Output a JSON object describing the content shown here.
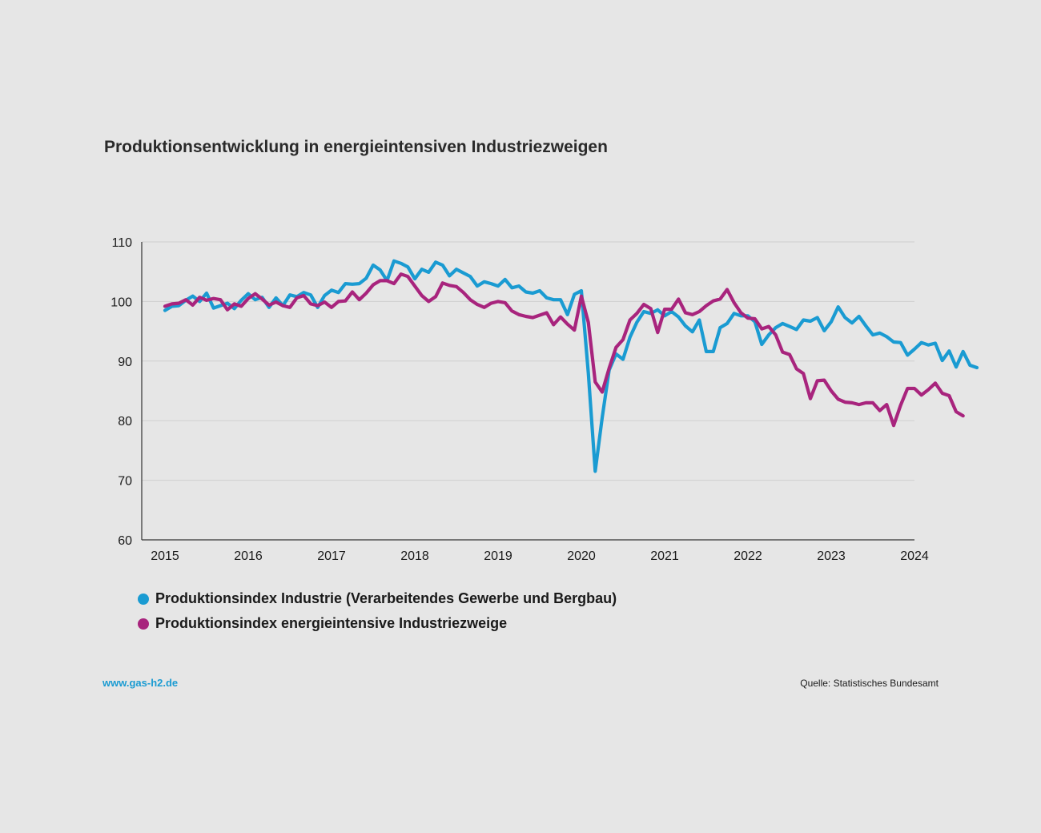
{
  "chart_data": {
    "type": "line",
    "title": "Produktionsentwicklung in energieintensiven Industriezweigen",
    "xlabel": "",
    "ylabel": "",
    "xlim": [
      2015,
      2024
    ],
    "ylim": [
      60,
      110
    ],
    "yticks": [
      60,
      70,
      80,
      90,
      100,
      110
    ],
    "xticks": [
      "2015",
      "2016",
      "2017",
      "2018",
      "2019",
      "2020",
      "2021",
      "2022",
      "2023",
      "2024"
    ],
    "grid": true,
    "legend_position": "bottom-left",
    "x_start": 2015.0,
    "x_step_months": 1,
    "series": [
      {
        "name": "Produktionsindex Industrie (Verarbeitendes Gewerbe und Bergbau)",
        "color": "#1a9bd2",
        "values": [
          98.5,
          99.2,
          99.3,
          100.2,
          100.9,
          100.0,
          101.4,
          98.9,
          99.3,
          99.7,
          98.8,
          100.2,
          101.3,
          100.3,
          100.7,
          99.0,
          100.6,
          99.3,
          101.1,
          100.8,
          101.5,
          101.1,
          99.0,
          101.0,
          101.9,
          101.5,
          103.0,
          102.9,
          103.0,
          103.9,
          106.1,
          105.3,
          103.5,
          106.8,
          106.4,
          105.8,
          103.8,
          105.4,
          104.9,
          106.6,
          106.1,
          104.3,
          105.4,
          104.8,
          104.2,
          102.6,
          103.3,
          103.0,
          102.6,
          103.7,
          102.3,
          102.6,
          101.6,
          101.4,
          101.8,
          100.6,
          100.3,
          100.3,
          97.8,
          101.2,
          101.8,
          88.0,
          71.5,
          80.5,
          88.5,
          91.2,
          90.3,
          94.0,
          96.5,
          98.3,
          98.0,
          98.6,
          97.6,
          98.3,
          97.4,
          95.9,
          94.9,
          96.9,
          91.6,
          91.6,
          95.6,
          96.3,
          98.0,
          97.6,
          97.6,
          96.6,
          92.8,
          94.4,
          95.6,
          96.3,
          95.8,
          95.3,
          96.9,
          96.7,
          97.3,
          95.1,
          96.6,
          99.1,
          97.3,
          96.4,
          97.5,
          95.9,
          94.4,
          94.7,
          94.1,
          93.2,
          93.1,
          91.0,
          92.0,
          93.1,
          92.7,
          93.0,
          90.1,
          91.7,
          89.0,
          91.6,
          89.3,
          88.9
        ]
      },
      {
        "name": "Produktionsindex energieintensive Industriezweige",
        "color": "#a8247d",
        "values": [
          99.2,
          99.6,
          99.7,
          100.3,
          99.4,
          100.7,
          100.2,
          100.5,
          100.3,
          98.6,
          99.6,
          99.2,
          100.5,
          101.3,
          100.4,
          99.4,
          99.9,
          99.3,
          99.0,
          100.6,
          101.0,
          99.6,
          99.3,
          99.9,
          99.0,
          100.0,
          100.1,
          101.6,
          100.3,
          101.4,
          102.8,
          103.5,
          103.5,
          103.0,
          104.6,
          104.2,
          102.6,
          101.0,
          100.0,
          100.8,
          103.1,
          102.7,
          102.5,
          101.5,
          100.3,
          99.5,
          99.0,
          99.7,
          100.0,
          99.8,
          98.4,
          97.8,
          97.5,
          97.3,
          97.7,
          98.1,
          96.1,
          97.4,
          96.2,
          95.2,
          100.9,
          96.5,
          86.5,
          84.8,
          88.8,
          92.3,
          93.6,
          96.9,
          98.0,
          99.5,
          98.8,
          94.8,
          98.7,
          98.7,
          100.4,
          98.1,
          97.8,
          98.3,
          99.3,
          100.1,
          100.4,
          102.0,
          99.8,
          98.1,
          97.2,
          97.1,
          95.4,
          95.8,
          94.4,
          91.5,
          91.1,
          88.7,
          87.9,
          83.7,
          86.7,
          86.8,
          85.0,
          83.6,
          83.1,
          83.0,
          82.7,
          83.0,
          83.0,
          81.7,
          82.7,
          79.2,
          82.6,
          85.4,
          85.4,
          84.3,
          85.2,
          86.3,
          84.6,
          84.2,
          81.5,
          80.8
        ]
      }
    ]
  },
  "footer": {
    "website": "www.gas-h2.de",
    "source": "Quelle: Statistisches Bundesamt"
  }
}
